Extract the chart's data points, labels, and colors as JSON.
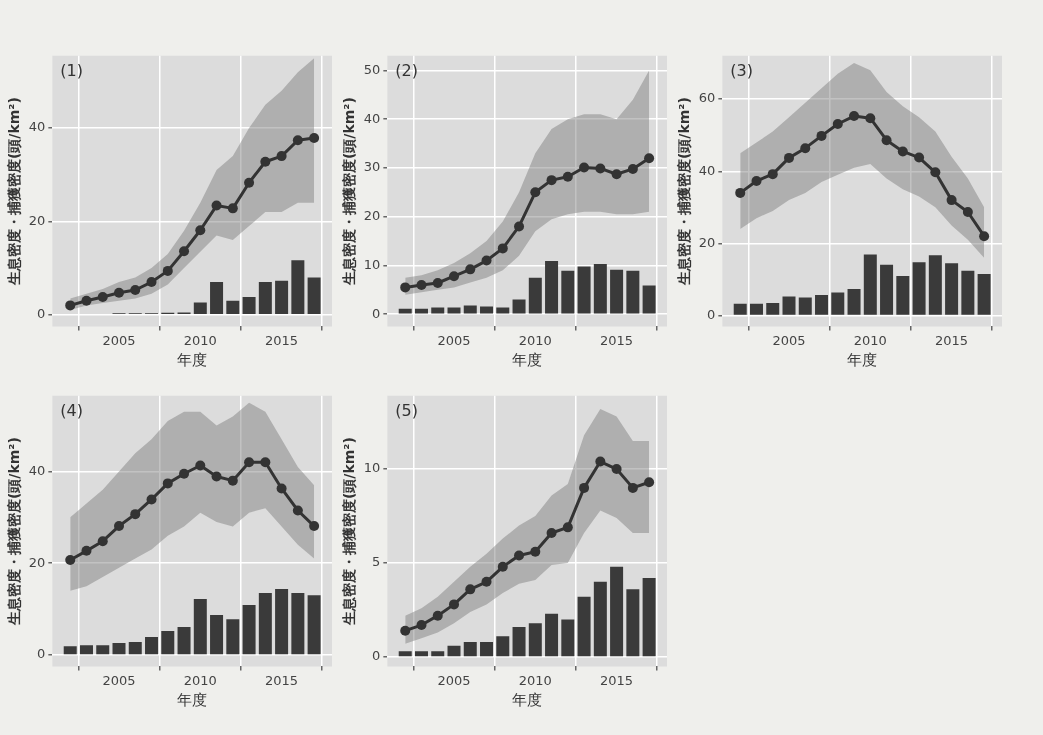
{
  "chart_data": [
    {
      "type": "bar",
      "title": "(1)",
      "xlabel": "年度",
      "ylabel": "生息密度・捕獲密度(頭/km²)",
      "x": [
        2002,
        2003,
        2004,
        2005,
        2006,
        2007,
        2008,
        2009,
        2010,
        2011,
        2012,
        2013,
        2014,
        2015,
        2016,
        2017
      ],
      "xlim": [
        2000.9,
        2018.1
      ],
      "xticks": [
        2005,
        2010,
        2015
      ],
      "ylim": [
        -2.5,
        55.5
      ],
      "yticks": [
        0,
        20,
        40
      ],
      "grid": true,
      "marker": "circle",
      "series": [
        {
          "color": "#3a3a3a",
          "values": [
            null,
            null,
            null,
            0.3,
            0.3,
            0.3,
            0.4,
            0.5,
            2.6,
            7,
            3,
            3.8,
            7,
            7.3,
            11.7,
            8
          ]
        },
        {
          "type": "line",
          "color": "#333333",
          "values": [
            2,
            3,
            3.8,
            4.7,
            5.3,
            7,
            9.4,
            13.6,
            18.1,
            23.4,
            22.8,
            28.3,
            32.8,
            34,
            37.4,
            37.9
          ],
          "lower": [
            1,
            2,
            2.5,
            3,
            3.5,
            4.5,
            6.5,
            10,
            13.5,
            17,
            16,
            19,
            22,
            22,
            24,
            24
          ],
          "upper": [
            3.5,
            4.5,
            5.5,
            7,
            8,
            10,
            13,
            18,
            24,
            31,
            34,
            40,
            45,
            48,
            52,
            55
          ]
        }
      ]
    },
    {
      "type": "bar",
      "title": "(2)",
      "xlabel": "年度",
      "ylabel": "生息密度・捕獲密度(頭/km²)",
      "x": [
        2002,
        2003,
        2004,
        2005,
        2006,
        2007,
        2008,
        2009,
        2010,
        2011,
        2012,
        2013,
        2014,
        2015,
        2016,
        2017
      ],
      "xlim": [
        2000.9,
        2018.1
      ],
      "xticks": [
        2005,
        2010,
        2015
      ],
      "ylim": [
        -2.5,
        53
      ],
      "yticks": [
        0,
        10,
        20,
        30,
        40,
        50
      ],
      "grid": true,
      "marker": "circle",
      "series": [
        {
          "color": "#3a3a3a",
          "values": [
            1.1,
            1.1,
            1.4,
            1.4,
            1.8,
            1.6,
            1.4,
            3,
            7.5,
            10.9,
            8.9,
            9.8,
            10.3,
            9.1,
            8.9,
            5.9
          ]
        },
        {
          "type": "line",
          "color": "#333333",
          "values": [
            5.5,
            6,
            6.4,
            7.8,
            9.2,
            11,
            13.5,
            18,
            25,
            27.5,
            28.2,
            30.1,
            29.9,
            28.7,
            29.8,
            32
          ],
          "lower": [
            4,
            4.5,
            5,
            5.5,
            6.5,
            7.5,
            9,
            12,
            17,
            19.5,
            20.5,
            21,
            21,
            20.5,
            20.5,
            21
          ],
          "upper": [
            7.5,
            8,
            9,
            10.5,
            12.5,
            15,
            19,
            25,
            33,
            38,
            40,
            41,
            41,
            40,
            44,
            50
          ]
        }
      ]
    },
    {
      "type": "bar",
      "title": "(3)",
      "xlabel": "年度",
      "ylabel": "生息密度・捕獲密度(頭/km²)",
      "x": [
        2002,
        2003,
        2004,
        2005,
        2006,
        2007,
        2008,
        2009,
        2010,
        2011,
        2012,
        2013,
        2014,
        2015,
        2016,
        2017
      ],
      "xlim": [
        2000.9,
        2018.1
      ],
      "xticks": [
        2005,
        2010,
        2015
      ],
      "ylim": [
        -3,
        72
      ],
      "yticks": [
        0,
        20,
        40,
        60
      ],
      "grid": true,
      "marker": "circle",
      "series": [
        {
          "color": "#3a3a3a",
          "values": [
            3.3,
            3.3,
            3.5,
            5.3,
            5,
            5.7,
            6.4,
            7.4,
            16.9,
            14.1,
            11,
            14.8,
            16.7,
            14.5,
            12.4,
            11.5
          ]
        },
        {
          "type": "line",
          "color": "#333333",
          "values": [
            34,
            37.3,
            39.2,
            43.7,
            46.4,
            49.8,
            53.1,
            55.3,
            54.7,
            48.6,
            45.5,
            43.8,
            39.7,
            32,
            28.7,
            22
          ],
          "lower": [
            24,
            27,
            29,
            32,
            34,
            37,
            39,
            41,
            42,
            38,
            35,
            33,
            30,
            25,
            21,
            16
          ],
          "upper": [
            45,
            48,
            51,
            55,
            59,
            63,
            67,
            70,
            68,
            62,
            58,
            55,
            51,
            44,
            38,
            30
          ]
        }
      ]
    },
    {
      "type": "bar",
      "title": "(4)",
      "xlabel": "年度",
      "ylabel": "生息密度・捕獲密度(頭/km²)",
      "x": [
        2002,
        2003,
        2004,
        2005,
        2006,
        2007,
        2008,
        2009,
        2010,
        2011,
        2012,
        2013,
        2014,
        2015,
        2016,
        2017
      ],
      "xlim": [
        2000.9,
        2018.1
      ],
      "xticks": [
        2005,
        2010,
        2015
      ],
      "ylim": [
        -2.5,
        56.5
      ],
      "yticks": [
        0,
        20,
        40
      ],
      "grid": true,
      "marker": "circle",
      "series": [
        {
          "color": "#3a3a3a",
          "values": [
            1.9,
            2.1,
            2.1,
            2.6,
            2.8,
            3.9,
            5.2,
            6.1,
            12.2,
            8.7,
            7.8,
            10.9,
            13.5,
            14.4,
            13.5,
            13
          ]
        },
        {
          "type": "line",
          "color": "#333333",
          "values": [
            20.7,
            22.7,
            24.8,
            28.1,
            30.7,
            33.9,
            37.4,
            39.5,
            41.3,
            38.9,
            38,
            42,
            42,
            36.3,
            31.5,
            28.1
          ],
          "lower": [
            14,
            15,
            17,
            19,
            21,
            23,
            26,
            28,
            31,
            29,
            28,
            31,
            32,
            28,
            24,
            21
          ],
          "upper": [
            30,
            33,
            36,
            40,
            44,
            47,
            51,
            53,
            53,
            50,
            52,
            55,
            53,
            47,
            41,
            37
          ]
        }
      ]
    },
    {
      "type": "bar",
      "title": "(5)",
      "xlabel": "年度",
      "ylabel": "生息密度・捕獲密度(頭/km²)",
      "x": [
        2002,
        2003,
        2004,
        2005,
        2006,
        2007,
        2008,
        2009,
        2010,
        2011,
        2012,
        2013,
        2014,
        2015,
        2016,
        2017
      ],
      "xlim": [
        2000.9,
        2018.1
      ],
      "xticks": [
        2005,
        2010,
        2015
      ],
      "ylim": [
        -0.5,
        13.9
      ],
      "yticks": [
        0,
        5,
        10
      ],
      "grid": true,
      "marker": "circle",
      "series": [
        {
          "color": "#3a3a3a",
          "values": [
            0.3,
            0.3,
            0.3,
            0.6,
            0.8,
            0.8,
            1.1,
            1.6,
            1.8,
            2.3,
            2,
            3.2,
            4,
            4.8,
            3.6,
            4.2
          ]
        },
        {
          "type": "line",
          "color": "#333333",
          "values": [
            1.4,
            1.7,
            2.2,
            2.8,
            3.6,
            4,
            4.8,
            5.4,
            5.6,
            6.6,
            6.9,
            9,
            10.4,
            10,
            9,
            9.3
          ],
          "lower": [
            0.7,
            1,
            1.3,
            1.8,
            2.4,
            2.8,
            3.4,
            3.9,
            4.1,
            4.9,
            5,
            6.6,
            7.8,
            7.4,
            6.6,
            6.6
          ],
          "upper": [
            2.2,
            2.6,
            3.2,
            4,
            4.8,
            5.5,
            6.3,
            7,
            7.5,
            8.6,
            9.2,
            11.8,
            13.2,
            12.8,
            11.5,
            11.5
          ]
        }
      ]
    }
  ]
}
